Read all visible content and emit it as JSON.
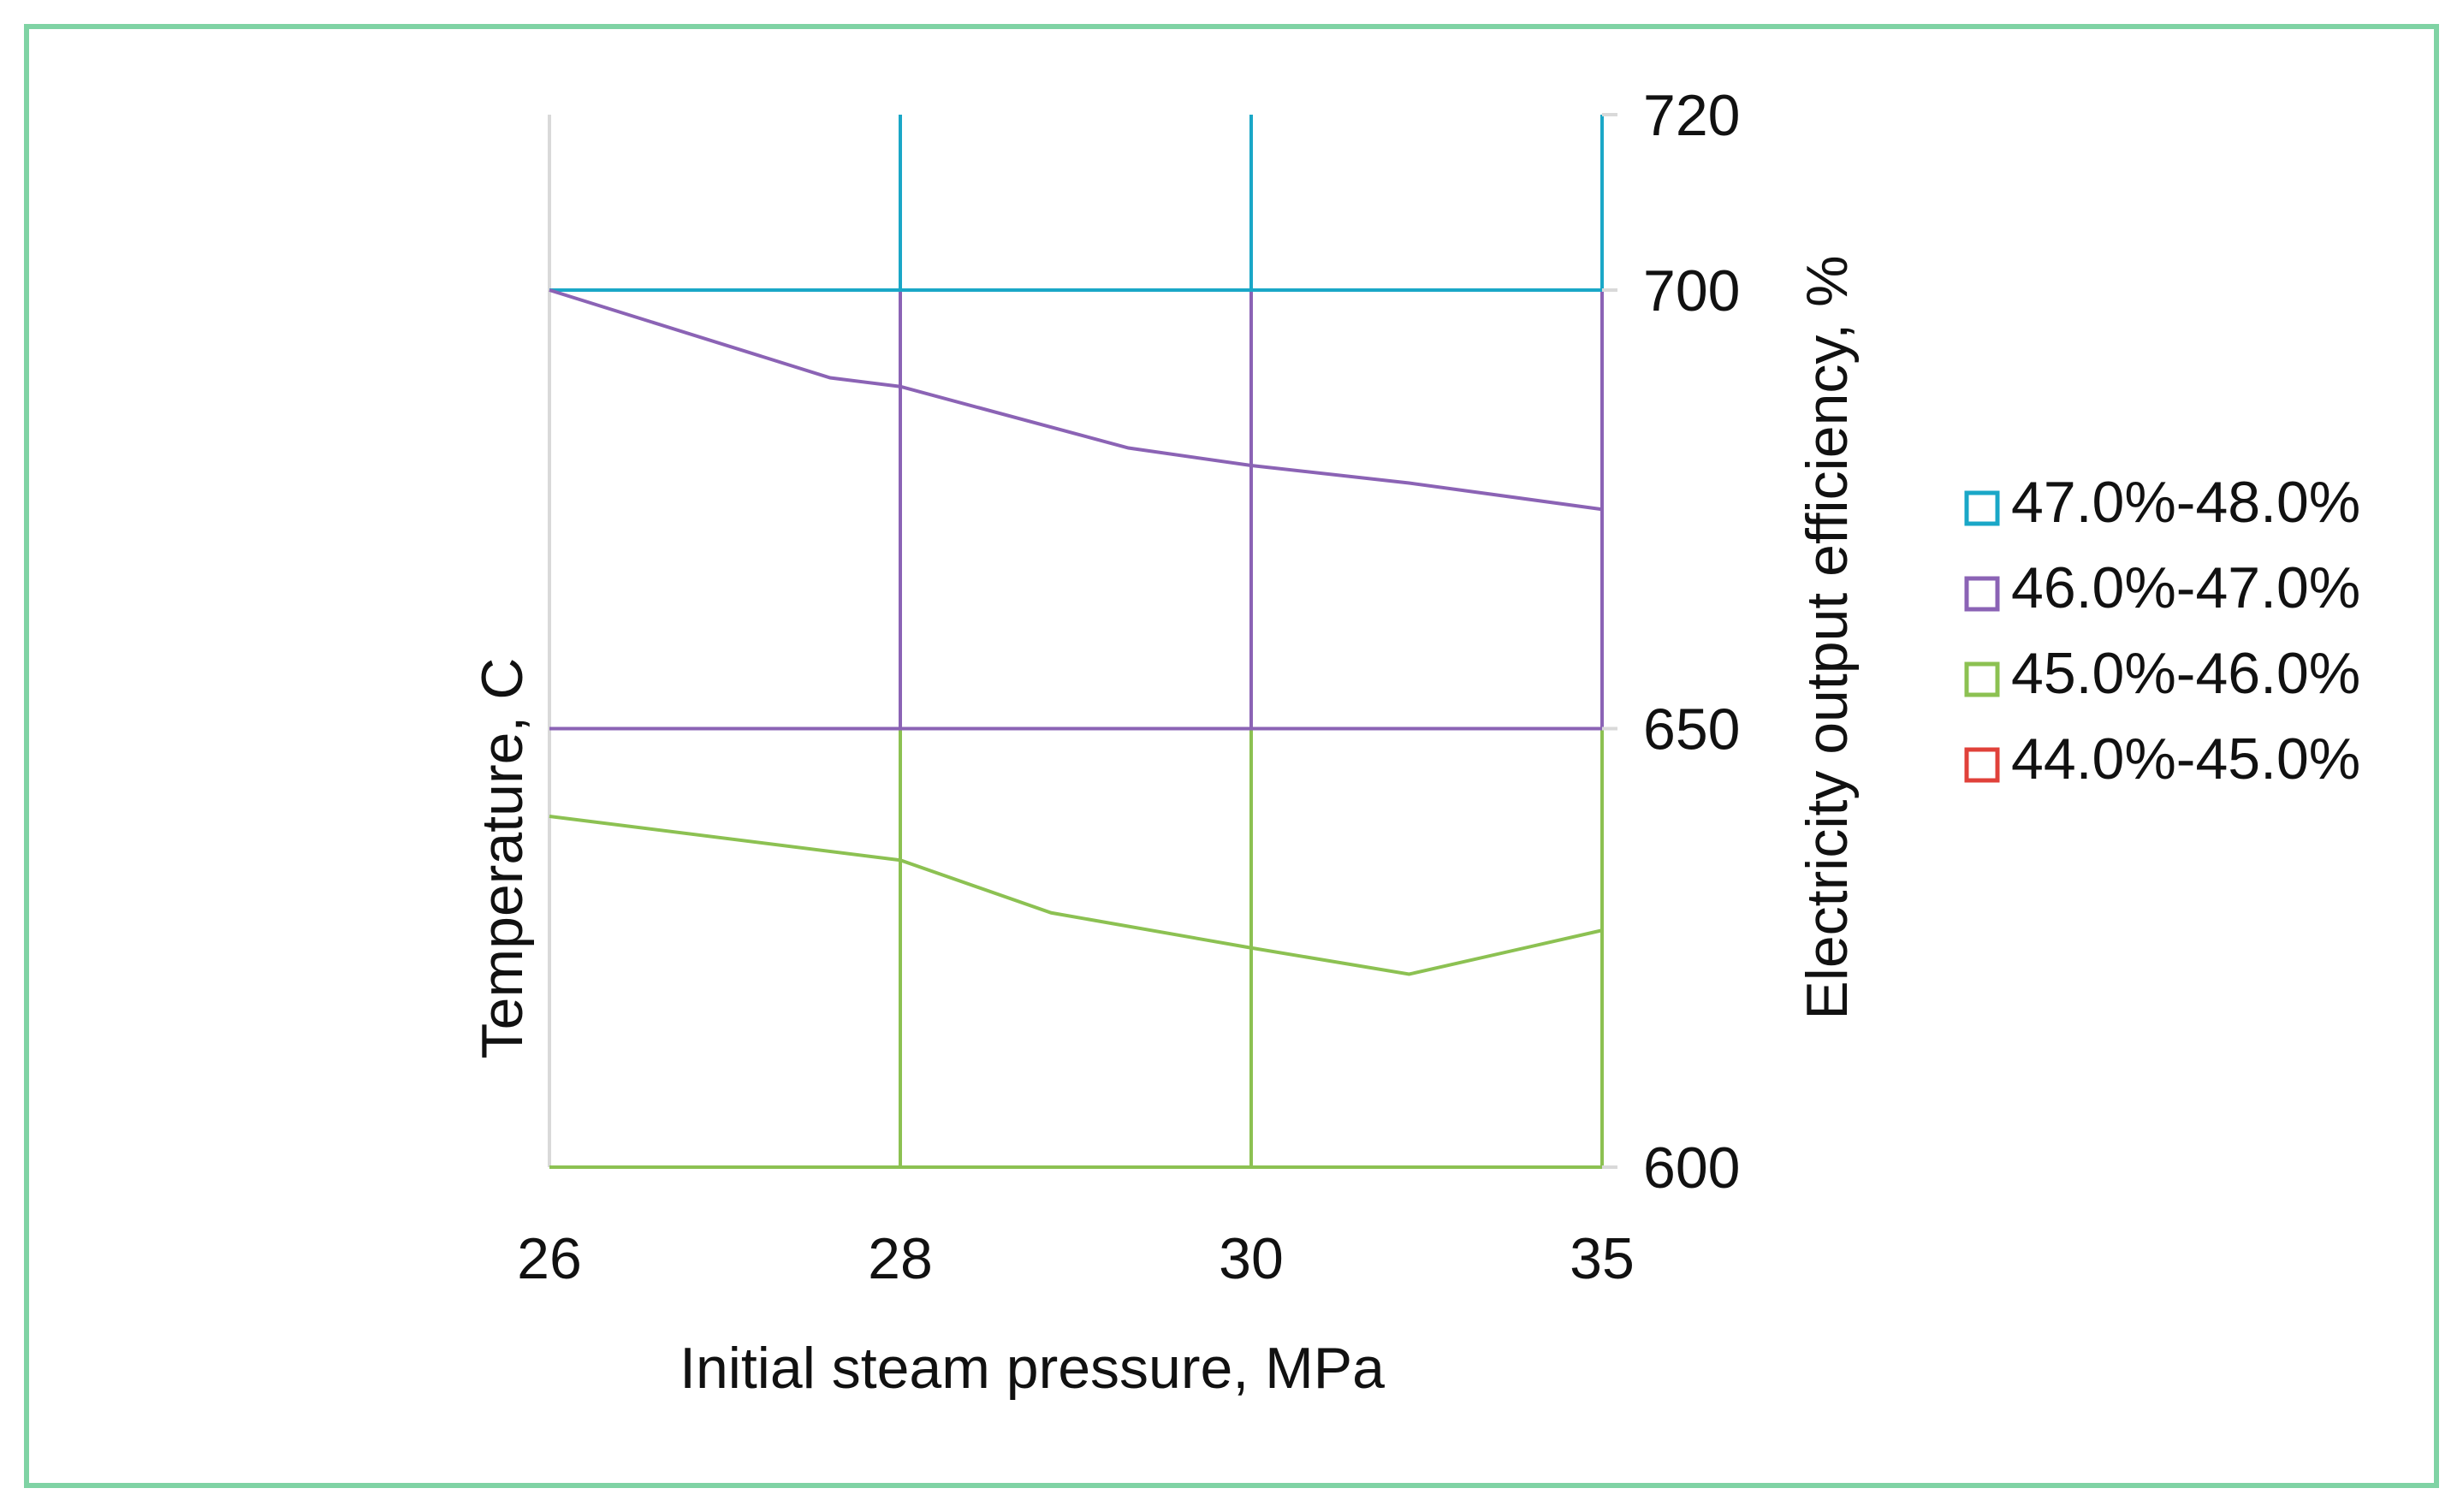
{
  "chart_data": {
    "type": "contour",
    "x_categories": [
      "26",
      "28",
      "30",
      "35"
    ],
    "xlabel": "Initial steam pressure, MPa",
    "ylabel_left": "Temperature, C",
    "ylabel_right": "Electricity output efficiency, %",
    "y_ticks": [
      600,
      650,
      700,
      720
    ],
    "ylim": [
      600,
      720
    ],
    "legend_position": "right",
    "series": [
      {
        "name": "47.0%-48.0%",
        "color": "#1aa7c7",
        "boundary": [
          [
            0,
            700
          ],
          [
            1,
            700
          ],
          [
            2,
            700
          ],
          [
            3,
            700
          ]
        ]
      },
      {
        "name": "46.0%-47.0%",
        "color": "#8b63b5",
        "boundary": [
          [
            0,
            700
          ],
          [
            0.8,
            690
          ],
          [
            1,
            689
          ],
          [
            1.65,
            682
          ],
          [
            2,
            680
          ],
          [
            2.45,
            678
          ],
          [
            3,
            675
          ]
        ]
      },
      {
        "name": "45.0%-46.0%",
        "color": "#8cc152",
        "boundary": [
          [
            0,
            640
          ],
          [
            1,
            635
          ],
          [
            1.43,
            629
          ],
          [
            2,
            625
          ],
          [
            2.45,
            622
          ],
          [
            3,
            627
          ]
        ]
      },
      {
        "name": "44.0%-45.0%",
        "color": "#e0413a",
        "boundary": []
      }
    ],
    "band_edges": [
      {
        "series": "47.0%-48.0%",
        "y": 700
      },
      {
        "series": "46.0%-47.0%",
        "y": 650
      },
      {
        "series": "45.0%-46.0%",
        "y": 600
      }
    ]
  }
}
